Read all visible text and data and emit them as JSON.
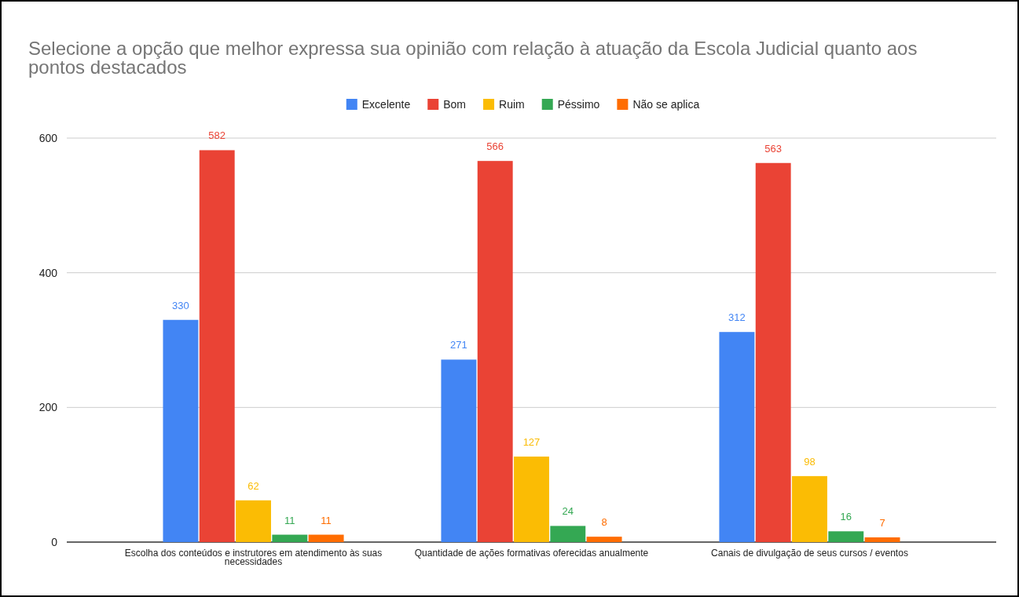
{
  "chart_data": {
    "type": "bar",
    "title": "Selecione a opção que melhor expressa sua opinião com relação à atuação da Escola Judicial quanto aos pontos destacados",
    "categories": [
      "Escolha dos conteúdos e instrutores em atendimento às suas necessidades",
      "Quantidade de ações formativas oferecidas anualmente",
      "Canais de divulgação de seus cursos / eventos"
    ],
    "series": [
      {
        "name": "Excelente",
        "color": "#4285f4",
        "values": [
          330,
          271,
          312
        ]
      },
      {
        "name": "Bom",
        "color": "#ea4335",
        "values": [
          582,
          566,
          563
        ]
      },
      {
        "name": "Ruim",
        "color": "#fbbc04",
        "values": [
          62,
          127,
          98
        ]
      },
      {
        "name": "Péssimo",
        "color": "#34a853",
        "values": [
          11,
          24,
          16
        ]
      },
      {
        "name": "Não se aplica",
        "color": "#ff6d01",
        "values": [
          11,
          8,
          7
        ]
      }
    ],
    "ylim": [
      0,
      600
    ],
    "yticks": [
      0,
      200,
      400,
      600
    ],
    "grid": "y",
    "legend": "top",
    "data_labels": true
  }
}
